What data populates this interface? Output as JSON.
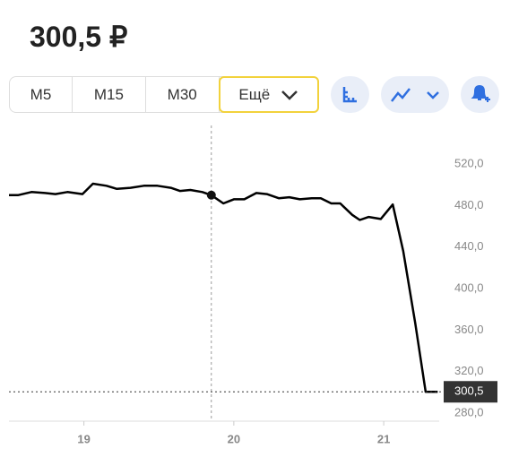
{
  "header": {
    "price": "300,5 ₽"
  },
  "tabs": [
    "M5",
    "M15",
    "M30",
    "Ещё"
  ],
  "chart_data": {
    "type": "line",
    "x": [
      18.5,
      18.56,
      18.65,
      18.74,
      18.81,
      18.89,
      18.99,
      19.06,
      19.15,
      19.22,
      19.31,
      19.4,
      19.49,
      19.58,
      19.64,
      19.71,
      19.79,
      19.85,
      19.93,
      20.0,
      20.07,
      20.15,
      20.22,
      20.3,
      20.37,
      20.44,
      20.52,
      20.58,
      20.65,
      20.71,
      20.79,
      20.84,
      20.9,
      20.98,
      21.06,
      21.13,
      21.21,
      21.28,
      21.36
    ],
    "series": [
      {
        "color": "#000000",
        "values": [
          490,
          490,
          493,
          492,
          491,
          493,
          491,
          501,
          499,
          496,
          497,
          499,
          499,
          497,
          494,
          495,
          493,
          490,
          482,
          486,
          486,
          492,
          491,
          487,
          488,
          486,
          487,
          487,
          482,
          482,
          471,
          466,
          469,
          467,
          481,
          436,
          367,
          300.5,
          300.5
        ]
      }
    ],
    "xlim": [
      18.5,
      21.37
    ],
    "xticks": [
      19,
      20,
      21
    ],
    "ylim": [
      280,
      520
    ],
    "yticks": [
      {
        "value": 280,
        "label": "280,0"
      },
      {
        "value": 320,
        "label": "320,0"
      },
      {
        "value": 360,
        "label": "360,0"
      },
      {
        "value": 400,
        "label": "400,0"
      },
      {
        "value": 440,
        "label": "440,0"
      },
      {
        "value": 480,
        "label": "480,0"
      },
      {
        "value": 520,
        "label": "520,0"
      }
    ],
    "crosshair_x": 19.85,
    "last_value": {
      "value": 300.5,
      "label": "300,5"
    }
  }
}
